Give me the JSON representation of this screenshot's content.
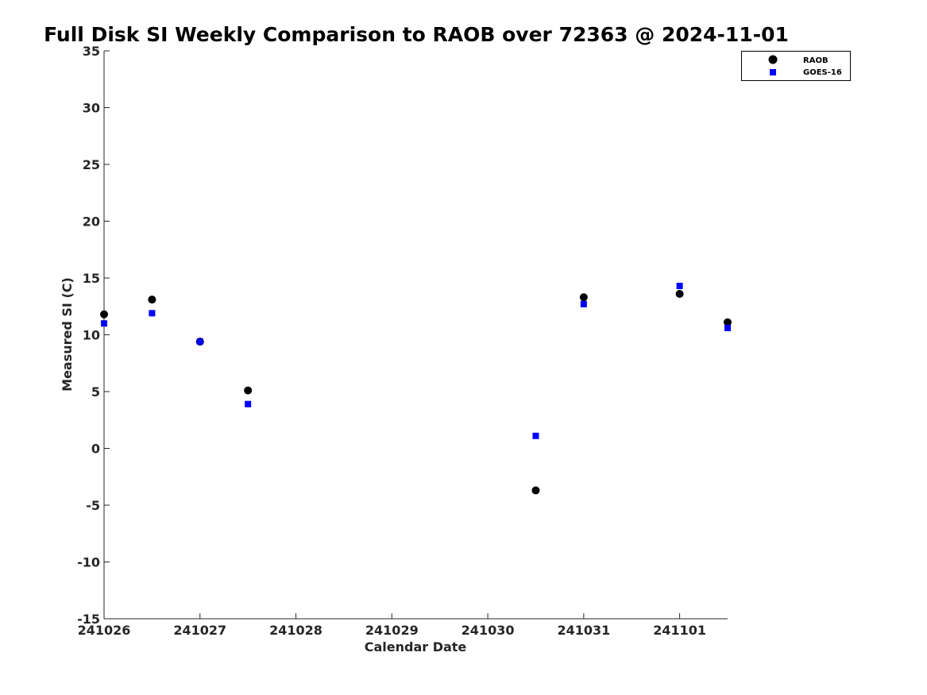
{
  "chart_data": {
    "type": "scatter",
    "title": "Full Disk SI Weekly Comparison to RAOB over 72363 @ 2024-11-01",
    "xlabel": "Calendar Date",
    "ylabel": "Measured SI (C)",
    "xlim": [
      "241026",
      "241101 12:00"
    ],
    "ylim": [
      -15,
      35
    ],
    "x_tick_labels": [
      "241026",
      "241027",
      "241028",
      "241029",
      "241030",
      "241031",
      "241101"
    ],
    "y_tick_labels": [
      "35",
      "30",
      "25",
      "20",
      "15",
      "10",
      "5",
      "0",
      "-5",
      "-10",
      "-15"
    ],
    "grid": false,
    "legend_position": "top-right",
    "series": [
      {
        "name": "RAOB",
        "marker": "circle",
        "color": "#000000",
        "points": [
          {
            "x": "241026 00:00",
            "y": 11.8
          },
          {
            "x": "241026 12:00",
            "y": 13.1
          },
          {
            "x": "241027 00:00",
            "y": 9.4
          },
          {
            "x": "241027 12:00",
            "y": 5.1
          },
          {
            "x": "241030 12:00",
            "y": -3.7
          },
          {
            "x": "241031 00:00",
            "y": 13.3
          },
          {
            "x": "241101 00:00",
            "y": 13.6
          },
          {
            "x": "241101 12:00",
            "y": 11.1
          }
        ]
      },
      {
        "name": "GOES-16",
        "marker": "square",
        "color": "#0000ff",
        "points": [
          {
            "x": "241026 00:00",
            "y": 11.0
          },
          {
            "x": "241026 12:00",
            "y": 11.9
          },
          {
            "x": "241027 00:00",
            "y": 9.4
          },
          {
            "x": "241027 12:00",
            "y": 3.9
          },
          {
            "x": "241030 12:00",
            "y": 1.1
          },
          {
            "x": "241031 00:00",
            "y": 12.7
          },
          {
            "x": "241101 00:00",
            "y": 14.3
          },
          {
            "x": "241101 12:00",
            "y": 10.6
          }
        ]
      }
    ]
  }
}
